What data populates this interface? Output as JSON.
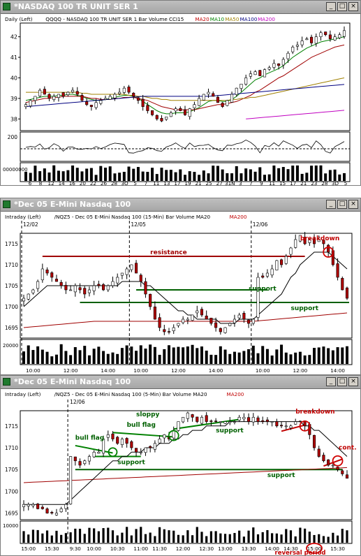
{
  "windows": [
    {
      "id": "w1",
      "title": "*NASDAQ 100 TR UNIT SER 1",
      "info": [
        {
          "text": "Daily  (Left)",
          "color": "#000000"
        },
        {
          "text": "QQQQ - NASDAQ 100 TR UNIT SER 1  Bar  Volume  CCI15",
          "color": "#000000"
        },
        {
          "text": "MA20",
          "color": "#c00000"
        },
        {
          "text": "MA10",
          "color": "#008000"
        },
        {
          "text": "MA50",
          "color": "#a08000"
        },
        {
          "text": "MA100",
          "color": "#000080"
        },
        {
          "text": "MA200",
          "color": "#c000c0"
        }
      ],
      "price_ticks": [
        "42",
        "41",
        "40",
        "39",
        "38"
      ],
      "osc_tick": "200",
      "volume_label": "00000000",
      "x_ticks": [
        "6",
        "8",
        "12",
        "14",
        "16",
        "20",
        "22",
        "26",
        "28",
        "3O",
        "5",
        "7",
        "11",
        "13",
        "17",
        "19",
        "21",
        "25",
        "27",
        "31N",
        "3",
        "7",
        "9",
        "11",
        "15",
        "17",
        "21",
        "23",
        "28",
        "3D",
        "5"
      ],
      "annotations": []
    },
    {
      "id": "w2",
      "title": "*Dec 05  E-Mini Nasdaq 100",
      "info": [
        {
          "text": "Intraday  (Left)",
          "color": "#000000"
        },
        {
          "text": "/NQZ5 - Dec 05 E-Mini Nasdaq 100 (15-Min)  Bar  Volume  MA20",
          "color": "#000000"
        },
        {
          "text": "MA200",
          "color": "#c00000"
        }
      ],
      "dates": [
        "12/02",
        "12/05",
        "12/06"
      ],
      "price_ticks": [
        "1715",
        "1710",
        "1705",
        "1700",
        "1695"
      ],
      "volume_label": "20000",
      "x_ticks": [
        "10:00",
        "12:00",
        "14:00",
        "10:00",
        "12:00",
        "14:00",
        "10:00",
        "12:00",
        "14:00"
      ],
      "annotations": [
        "resistance",
        "support",
        "support",
        "breakdown"
      ]
    },
    {
      "id": "w3",
      "title": "*Dec 05  E-Mini Nasdaq 100",
      "info": [
        {
          "text": "Intraday  (Left)",
          "color": "#000000"
        },
        {
          "text": "/NQZ5 - Dec 05 E-Mini Nasdaq 100 (5-Min)  Bar  Volume  MA20",
          "color": "#000000"
        },
        {
          "text": "MA200",
          "color": "#c00000"
        }
      ],
      "dates": [
        "12/06"
      ],
      "price_ticks": [
        "1715",
        "1710",
        "1705",
        "1700",
        "1695"
      ],
      "volume_label": "10000",
      "x_ticks": [
        "15:00",
        "15:30",
        "9:30",
        "10:00",
        "10:30",
        "11:00",
        "11:30",
        "12:00",
        "12:30",
        "13:00",
        "13:30",
        "14:00",
        "14:30",
        "15:00",
        "15:30"
      ],
      "annotations": [
        "bull flag",
        "sloppy",
        "bull flag",
        "support",
        "support",
        "breakdown",
        "cont.",
        "support",
        "reversal period"
      ]
    }
  ],
  "chart_data": [
    {
      "type": "bar",
      "title": "*NASDAQ 100 TR UNIT SER 1",
      "ylim": [
        37.5,
        42.6
      ],
      "series": [
        {
          "name": "QQQQ - NASDAQ 100 TR UNIT SER 1",
          "closes": [
            38.7,
            38.9,
            39.1,
            39.4,
            39.2,
            39.0,
            39.1,
            39.2,
            39.1,
            39.3,
            39.4,
            39.2,
            38.9,
            38.7,
            38.6,
            38.8,
            38.9,
            39.0,
            39.1,
            39.2,
            39.3,
            39.5,
            39.3,
            39.1,
            38.9,
            38.6,
            38.4,
            38.2,
            38.0,
            37.9,
            38.1,
            38.3,
            38.5,
            38.4,
            38.2,
            38.5,
            38.7,
            39.0,
            39.2,
            39.3,
            39.1,
            38.8,
            38.6,
            38.9,
            39.2,
            39.5,
            39.7,
            40.0,
            40.2,
            40.3,
            40.1,
            40.4,
            40.5,
            40.7,
            40.6,
            40.9,
            41.2,
            41.5,
            41.6,
            41.8,
            41.9,
            41.7,
            42.0,
            42.2,
            42.1,
            41.9,
            42.0,
            42.1,
            42.3
          ]
        },
        {
          "name": "MA10",
          "values": [
            38.9,
            38.95,
            39.0,
            39.05,
            39.1,
            39.1,
            39.1,
            39.15,
            39.15,
            39.2,
            39.2,
            39.15,
            39.1,
            39.0,
            38.95,
            38.9,
            38.9,
            38.95,
            39.0,
            39.05,
            39.1,
            39.15,
            39.15,
            39.1,
            39.0,
            38.85,
            38.7,
            38.55,
            38.4,
            38.3,
            38.25,
            38.25,
            38.3,
            38.3,
            38.3,
            38.35,
            38.45,
            38.55,
            38.7,
            38.85,
            38.9,
            38.9,
            38.85,
            38.85,
            38.95,
            39.1,
            39.3,
            39.5,
            39.7,
            39.9,
            40.0,
            40.15,
            40.25,
            40.35,
            40.45,
            40.6,
            40.8,
            41.0,
            41.15,
            41.3,
            41.45,
            41.55,
            41.65,
            41.75,
            41.8,
            41.85,
            41.9,
            41.95,
            42.0
          ]
        },
        {
          "name": "MA20",
          "values": [
            38.8,
            38.85,
            38.9,
            38.95,
            39.0,
            39.0,
            39.05,
            39.05,
            39.1,
            39.1,
            39.1,
            39.1,
            39.1,
            39.05,
            39.0,
            39.0,
            38.95,
            38.95,
            38.95,
            39.0,
            39.0,
            39.05,
            39.05,
            39.05,
            39.0,
            38.95,
            38.9,
            38.8,
            38.7,
            38.6,
            38.55,
            38.5,
            38.45,
            38.45,
            38.45,
            38.45,
            38.45,
            38.5,
            38.55,
            38.6,
            38.65,
            38.7,
            38.7,
            38.75,
            38.8,
            38.85,
            38.95,
            39.05,
            39.15,
            39.3,
            39.4,
            39.55,
            39.7,
            39.85,
            40.0,
            40.1,
            40.25,
            40.4,
            40.55,
            40.7,
            40.85,
            41.0,
            41.1,
            41.2,
            41.3,
            41.4,
            41.5,
            41.55,
            41.6
          ]
        },
        {
          "name": "MA50",
          "values": [
            39.3,
            39.3,
            39.3,
            39.3,
            39.3,
            39.3,
            39.3,
            39.3,
            39.3,
            39.3,
            39.3,
            39.3,
            39.25,
            39.25,
            39.2,
            39.2,
            39.2,
            39.2,
            39.2,
            39.2,
            39.2,
            39.2,
            39.15,
            39.15,
            39.1,
            39.1,
            39.05,
            39.0,
            39.0,
            38.95,
            38.95,
            38.9,
            38.9,
            38.9,
            38.9,
            38.9,
            38.9,
            38.9,
            38.9,
            38.9,
            38.9,
            38.9,
            38.9,
            38.9,
            38.95,
            38.95,
            39.0,
            39.0,
            39.05,
            39.05,
            39.1,
            39.15,
            39.2,
            39.25,
            39.3,
            39.35,
            39.4,
            39.45,
            39.5,
            39.55,
            39.6,
            39.65,
            39.7,
            39.75,
            39.8,
            39.85,
            39.9,
            39.95,
            40.0
          ]
        },
        {
          "name": "MA100",
          "values": [
            38.6,
            38.62,
            38.64,
            38.66,
            38.68,
            38.7,
            38.72,
            38.74,
            38.76,
            38.78,
            38.8,
            38.82,
            38.84,
            38.86,
            38.88,
            38.9,
            38.92,
            38.94,
            38.96,
            38.98,
            39.0,
            39.02,
            39.04,
            39.06,
            39.08,
            39.1,
            39.1,
            39.1,
            39.1,
            39.1,
            39.1,
            39.1,
            39.1,
            39.1,
            39.1,
            39.1,
            39.1,
            39.1,
            39.1,
            39.1,
            39.12,
            39.14,
            39.16,
            39.18,
            39.2,
            39.22,
            39.24,
            39.26,
            39.28,
            39.3,
            39.32,
            39.34,
            39.36,
            39.38,
            39.4,
            39.42,
            39.44,
            39.46,
            39.48,
            39.5,
            39.52,
            39.54,
            39.56,
            39.58,
            39.6,
            39.62,
            39.64,
            39.66,
            39.68
          ]
        },
        {
          "name": "MA200",
          "start_index": 47,
          "values": [
            38.0,
            38.02,
            38.04,
            38.06,
            38.08,
            38.1,
            38.12,
            38.14,
            38.16,
            38.18,
            38.2,
            38.22,
            38.24,
            38.26,
            38.28,
            38.3,
            38.32,
            38.34,
            38.36,
            38.38,
            38.4,
            38.42
          ]
        }
      ]
    },
    {
      "type": "bar",
      "title": "*Dec 05  E-Mini Nasdaq 100",
      "ylim": [
        1692.5,
        1717.5
      ],
      "levels": {
        "resistance": 1712,
        "support_upper": 1704,
        "support_lower": 1701
      },
      "series": [
        {
          "name": "/NQZ5 - Dec 05 E-Mini Nasdaq 100 (15-Min)",
          "closes": [
            1702,
            1703,
            1704,
            1706,
            1709,
            1708,
            1707,
            1706,
            1705,
            1704,
            1704,
            1705,
            1704,
            1703,
            1704,
            1705,
            1705,
            1704,
            1705,
            1706,
            1707,
            1708,
            1709,
            1710,
            1708,
            1706,
            1703,
            1700,
            1697,
            1695,
            1694,
            1694,
            1695,
            1696,
            1697,
            1697,
            1698,
            1699,
            1698,
            1697,
            1696,
            1695,
            1694,
            1695,
            1696,
            1697,
            1698,
            1697,
            1696,
            1697,
            1707,
            1707,
            1708,
            1709,
            1711,
            1710,
            1712,
            1714,
            1716,
            1717,
            1715,
            1716,
            1715,
            1716,
            1715,
            1713,
            1710,
            1707,
            1704,
            1702
          ]
        },
        {
          "name": "MA20",
          "values": [
            1700,
            1701,
            1702,
            1703,
            1704,
            1705,
            1705,
            1705,
            1705,
            1705,
            1705,
            1705,
            1705,
            1705,
            1705,
            1705,
            1705,
            1705,
            1705,
            1705,
            1705,
            1706,
            1706,
            1706,
            1706,
            1706,
            1705,
            1705,
            1704,
            1703,
            1702,
            1701,
            1700,
            1699,
            1699,
            1698,
            1698,
            1697,
            1697,
            1697,
            1697,
            1697,
            1696,
            1696,
            1696,
            1696,
            1697,
            1697,
            1697,
            1697,
            1698,
            1699,
            1700,
            1701,
            1702,
            1703,
            1705,
            1707,
            1708,
            1710,
            1711,
            1712,
            1713,
            1713,
            1713,
            1713,
            1712,
            1711,
            1710,
            1709
          ]
        },
        {
          "name": "MA200",
          "values": [
            1695,
            1695.1,
            1695.2,
            1695.3,
            1695.4,
            1695.5,
            1695.6,
            1695.7,
            1695.8,
            1695.9,
            1696,
            1696.1,
            1696.2,
            1696.3,
            1696.4,
            1696.5,
            1696.5,
            1696.5,
            1696.5,
            1696.5,
            1696.5,
            1696.5,
            1696.5,
            1696.5,
            1696.5,
            1696.5,
            1696.5,
            1696.5,
            1696.5,
            1696.5,
            1696.5,
            1696.5,
            1696.5,
            1696.5,
            1696.5,
            1696.5,
            1696.5,
            1696.5,
            1696.5,
            1696.5,
            1696.5,
            1696.5,
            1696.5,
            1696.5,
            1696.5,
            1696.5,
            1696.5,
            1696.5,
            1696.5,
            1696.5,
            1696.6,
            1696.7,
            1696.8,
            1696.9,
            1697.0,
            1697.1,
            1697.2,
            1697.3,
            1697.4,
            1697.5,
            1697.6,
            1697.7,
            1697.8,
            1697.9,
            1698.0,
            1698.1,
            1698.2,
            1698.3,
            1698.4,
            1698.5
          ]
        }
      ]
    },
    {
      "type": "bar",
      "title": "*Dec 05  E-Mini Nasdaq 100",
      "ylim": [
        1693.5,
        1718.5
      ],
      "levels": {
        "support_lower": 1705
      },
      "series": [
        {
          "name": "/NQZ5 - Dec 05 E-Mini Nasdaq 100 (5-Min)",
          "closes": [
            1697,
            1697,
            1697,
            1696,
            1696,
            1695,
            1695,
            1695,
            1696,
            1697,
            1708,
            1707,
            1706,
            1707,
            1708,
            1709,
            1709,
            1712,
            1713,
            1712,
            1711,
            1712,
            1711,
            1710,
            1709,
            1709,
            1710,
            1710,
            1711,
            1712,
            1713,
            1712,
            1714,
            1716,
            1717,
            1718,
            1717,
            1716,
            1717,
            1716,
            1716,
            1716,
            1716,
            1716,
            1716,
            1716,
            1717,
            1717,
            1716,
            1717,
            1716,
            1716,
            1716,
            1716,
            1715,
            1715,
            1715,
            1715,
            1716,
            1716,
            1715,
            1713,
            1710,
            1708,
            1707,
            1706,
            1706,
            1705,
            1704,
            1703
          ]
        },
        {
          "name": "MA20",
          "values": [
            1697,
            1697,
            1697,
            1697,
            1697,
            1697,
            1697,
            1697,
            1697,
            1697,
            1698,
            1699,
            1700,
            1701,
            1702,
            1703,
            1704,
            1705,
            1706,
            1707,
            1707,
            1708,
            1708,
            1709,
            1709,
            1709,
            1710,
            1710,
            1710,
            1711,
            1711,
            1711,
            1712,
            1712,
            1713,
            1713,
            1714,
            1714,
            1714,
            1715,
            1715,
            1715,
            1715,
            1715,
            1716,
            1716,
            1716,
            1716,
            1716,
            1716,
            1716,
            1716,
            1716,
            1716,
            1716,
            1716,
            1716,
            1716,
            1716,
            1716,
            1715,
            1715,
            1714,
            1714,
            1713,
            1712,
            1711,
            1710,
            1709,
            1708
          ]
        },
        {
          "name": "MA200",
          "values": [
            1702,
            1702.05,
            1702.1,
            1702.15,
            1702.2,
            1702.25,
            1702.3,
            1702.35,
            1702.4,
            1702.45,
            1702.5,
            1702.55,
            1702.6,
            1702.65,
            1702.7,
            1702.75,
            1702.8,
            1702.85,
            1702.9,
            1702.95,
            1703,
            1703.05,
            1703.1,
            1703.15,
            1703.2,
            1703.25,
            1703.3,
            1703.35,
            1703.4,
            1703.45,
            1703.5,
            1703.55,
            1703.6,
            1703.65,
            1703.7,
            1703.75,
            1703.8,
            1703.85,
            1703.9,
            1703.95,
            1704,
            1704.05,
            1704.1,
            1704.15,
            1704.2,
            1704.25,
            1704.3,
            1704.35,
            1704.4,
            1704.45,
            1704.5,
            1704.55,
            1704.6,
            1704.65,
            1704.7,
            1704.75,
            1704.8,
            1704.85,
            1704.9,
            1704.95,
            1705,
            1705.05,
            1705.1,
            1705.15,
            1705.2,
            1705.25,
            1705.3,
            1705.35,
            1705.4,
            1705.45
          ]
        }
      ]
    }
  ]
}
